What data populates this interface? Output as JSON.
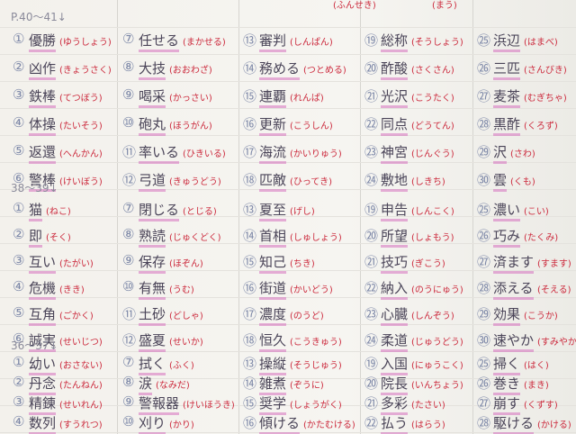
{
  "top_row": [
    "(ふんせき)",
    "(まう)"
  ],
  "sections": [
    {
      "heading": "P.40～41↓",
      "columns": [
        [
          {
            "num": "①",
            "word": "優勝",
            "reading": "(ゆうしょう)"
          },
          {
            "num": "②",
            "word": "凶作",
            "reading": "(きょうさく)"
          },
          {
            "num": "③",
            "word": "鉄棒",
            "reading": "(てつぼう)"
          },
          {
            "num": "④",
            "word": "体操",
            "reading": "(たいそう)"
          },
          {
            "num": "⑤",
            "word": "返還",
            "reading": "(へんかん)"
          },
          {
            "num": "⑥",
            "word": "警棒",
            "reading": "(けいぼう)"
          }
        ],
        [
          {
            "num": "⑦",
            "word": "任せる",
            "reading": "(まかせる)"
          },
          {
            "num": "⑧",
            "word": "大技",
            "reading": "(おおわざ)"
          },
          {
            "num": "⑨",
            "word": "喝采",
            "reading": "(かっさい)"
          },
          {
            "num": "⑩",
            "word": "砲丸",
            "reading": "(ほうがん)"
          },
          {
            "num": "⑪",
            "word": "率いる",
            "reading": "(ひきいる)"
          },
          {
            "num": "⑫",
            "word": "弓道",
            "reading": "(きゅうどう)"
          }
        ],
        [
          {
            "num": "⑬",
            "word": "審判",
            "reading": "(しんぱん)"
          },
          {
            "num": "⑭",
            "word": "務める",
            "reading": "(つとめる)"
          },
          {
            "num": "⑮",
            "word": "連覇",
            "reading": "(れんぱ)"
          },
          {
            "num": "⑯",
            "word": "更新",
            "reading": "(こうしん)"
          },
          {
            "num": "⑰",
            "word": "海流",
            "reading": "(かいりゅう)"
          },
          {
            "num": "⑱",
            "word": "匹敵",
            "reading": "(ひってき)"
          }
        ],
        [
          {
            "num": "⑲",
            "word": "総称",
            "reading": "(そうしょう)"
          },
          {
            "num": "⑳",
            "word": "酢酸",
            "reading": "(さくさん)"
          },
          {
            "num": "㉑",
            "word": "光沢",
            "reading": "(こうたく)"
          },
          {
            "num": "㉒",
            "word": "同点",
            "reading": "(どうてん)"
          },
          {
            "num": "㉓",
            "word": "神宮",
            "reading": "(じんぐう)"
          },
          {
            "num": "㉔",
            "word": "敷地",
            "reading": "(しきち)"
          }
        ],
        [
          {
            "num": "㉕",
            "word": "浜辺",
            "reading": "(はまべ)"
          },
          {
            "num": "㉖",
            "word": "三匹",
            "reading": "(さんびき)"
          },
          {
            "num": "㉗",
            "word": "麦茶",
            "reading": "(むぎちゃ)"
          },
          {
            "num": "㉘",
            "word": "黒酢",
            "reading": "(くろず)"
          },
          {
            "num": "㉙",
            "word": "沢",
            "reading": "(さわ)"
          },
          {
            "num": "㉚",
            "word": "雲",
            "reading": "(くも)"
          }
        ]
      ]
    },
    {
      "heading": "38～39↓",
      "columns": [
        [
          {
            "num": "①",
            "word": "猫",
            "reading": "(ねこ)"
          },
          {
            "num": "②",
            "word": "即",
            "reading": "(そく)"
          },
          {
            "num": "③",
            "word": "互い",
            "reading": "(たがい)"
          },
          {
            "num": "④",
            "word": "危機",
            "reading": "(きき)"
          },
          {
            "num": "⑤",
            "word": "互角",
            "reading": "(ごかく)"
          },
          {
            "num": "⑥",
            "word": "誠実",
            "reading": "(せいじつ)"
          }
        ],
        [
          {
            "num": "⑦",
            "word": "閉じる",
            "reading": "(とじる)"
          },
          {
            "num": "⑧",
            "word": "熟読",
            "reading": "(じゅくどく)"
          },
          {
            "num": "⑨",
            "word": "保存",
            "reading": "(ほぞん)"
          },
          {
            "num": "⑩",
            "word": "有無",
            "reading": "(うむ)"
          },
          {
            "num": "⑪",
            "word": "土砂",
            "reading": "(どしゃ)"
          },
          {
            "num": "⑫",
            "word": "盛夏",
            "reading": "(せいか)"
          }
        ],
        [
          {
            "num": "⑬",
            "word": "夏至",
            "reading": "(げし)"
          },
          {
            "num": "⑭",
            "word": "首相",
            "reading": "(しゅしょう)"
          },
          {
            "num": "⑮",
            "word": "知己",
            "reading": "(ちき)"
          },
          {
            "num": "⑯",
            "word": "街道",
            "reading": "(かいどう)"
          },
          {
            "num": "⑰",
            "word": "濃度",
            "reading": "(のうど)"
          },
          {
            "num": "⑱",
            "word": "恒久",
            "reading": "(こうきゅう)"
          }
        ],
        [
          {
            "num": "⑲",
            "word": "申告",
            "reading": "(しんこく)"
          },
          {
            "num": "⑳",
            "word": "所望",
            "reading": "(しょもう)"
          },
          {
            "num": "㉑",
            "word": "技巧",
            "reading": "(ぎこう)"
          },
          {
            "num": "㉒",
            "word": "納入",
            "reading": "(のうにゅう)"
          },
          {
            "num": "㉓",
            "word": "心臓",
            "reading": "(しんぞう)"
          },
          {
            "num": "㉔",
            "word": "柔道",
            "reading": "(じゅうどう)"
          }
        ],
        [
          {
            "num": "㉕",
            "word": "濃い",
            "reading": "(こい)"
          },
          {
            "num": "㉖",
            "word": "巧み",
            "reading": "(たくみ)"
          },
          {
            "num": "㉗",
            "word": "済ます",
            "reading": "(すます)"
          },
          {
            "num": "㉘",
            "word": "添える",
            "reading": "(そえる)"
          },
          {
            "num": "㉙",
            "word": "効果",
            "reading": "(こうか)"
          },
          {
            "num": "㉚",
            "word": "速やか",
            "reading": "(すみやか)"
          }
        ]
      ]
    },
    {
      "heading": "36～37↓",
      "columns": [
        [
          {
            "num": "①",
            "word": "幼い",
            "reading": "(おさない)"
          },
          {
            "num": "②",
            "word": "丹念",
            "reading": "(たんねん)"
          },
          {
            "num": "③",
            "word": "精錬",
            "reading": "(せいれん)"
          },
          {
            "num": "④",
            "word": "数列",
            "reading": "(すうれつ)"
          }
        ],
        [
          {
            "num": "⑦",
            "word": "拭く",
            "reading": "(ふく)"
          },
          {
            "num": "⑧",
            "word": "涙",
            "reading": "(なみだ)"
          },
          {
            "num": "⑨",
            "word": "警報器",
            "reading": "(けいほうき)"
          },
          {
            "num": "⑩",
            "word": "刈り",
            "reading": "(かり)"
          }
        ],
        [
          {
            "num": "⑬",
            "word": "操縦",
            "reading": "(そうじゅう)"
          },
          {
            "num": "⑭",
            "word": "雑煮",
            "reading": "(ぞうに)"
          },
          {
            "num": "⑮",
            "word": "奨学",
            "reading": "(しょうがく)"
          },
          {
            "num": "⑯",
            "word": "傾ける",
            "reading": "(かたむける)"
          }
        ],
        [
          {
            "num": "⑲",
            "word": "入国",
            "reading": "(にゅうこく)"
          },
          {
            "num": "⑳",
            "word": "院長",
            "reading": "(いんちょう)"
          },
          {
            "num": "㉑",
            "word": "多彩",
            "reading": "(たさい)"
          },
          {
            "num": "㉒",
            "word": "払う",
            "reading": "(はらう)"
          }
        ],
        [
          {
            "num": "㉕",
            "word": "掃く",
            "reading": "(はく)"
          },
          {
            "num": "㉖",
            "word": "巻き",
            "reading": "(まき)"
          },
          {
            "num": "㉗",
            "word": "崩す",
            "reading": "(くずす)"
          },
          {
            "num": "㉘",
            "word": "駆ける",
            "reading": "(かける)"
          }
        ]
      ]
    }
  ]
}
